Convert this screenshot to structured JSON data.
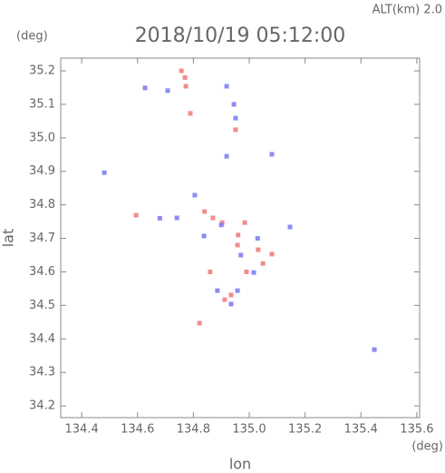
{
  "chart_data": {
    "type": "scatter",
    "title": "2018/10/19 05:12:00",
    "annotation": "ALT(km) 2.0",
    "y_unit": "(deg)",
    "x_unit": "(deg)",
    "x_label": "lon",
    "y_label": "lat",
    "xlim": [
      134.325,
      135.61
    ],
    "ylim": [
      34.165,
      35.238
    ],
    "xticks": [
      134.4,
      134.6,
      134.8,
      {
        "value": 135,
        "label": "135.0"
      },
      135.2,
      135.4,
      135.6
    ],
    "yticks": [
      34.2,
      34.3,
      34.4,
      34.5,
      34.6,
      34.7,
      34.8,
      34.9,
      {
        "value": 35,
        "label": "35.0"
      },
      35.1,
      35.2
    ],
    "series": [
      {
        "color": "#f07878",
        "x": [
          134.757,
          134.773,
          134.789,
          134.951,
          134.87,
          134.903,
          134.958,
          135.049,
          135.032,
          134.912,
          134.935,
          134.822,
          134.595,
          134.984,
          135.081,
          134.99,
          134.86,
          134.84,
          134.96,
          134.77
        ],
        "values": [
          35.2,
          35.154,
          35.073,
          35.024,
          34.761,
          34.747,
          34.68,
          34.625,
          34.666,
          34.517,
          34.531,
          34.447,
          34.769,
          34.747,
          34.653,
          34.6,
          34.6,
          34.78,
          34.71,
          35.18
        ]
      },
      {
        "color": "#7878f0",
        "x": [
          134.945,
          134.951,
          134.919,
          135.081,
          134.805,
          134.741,
          134.838,
          134.935,
          134.886,
          134.958,
          135.016,
          135.448,
          134.627,
          134.708,
          134.919,
          135.146,
          134.481,
          134.68,
          134.9,
          134.97,
          135.03
        ],
        "values": [
          35.1,
          35.059,
          34.945,
          34.951,
          34.829,
          34.761,
          34.707,
          34.504,
          34.544,
          34.544,
          34.598,
          34.368,
          35.149,
          35.141,
          35.154,
          34.734,
          34.896,
          34.76,
          34.74,
          34.65,
          34.7
        ]
      }
    ]
  }
}
